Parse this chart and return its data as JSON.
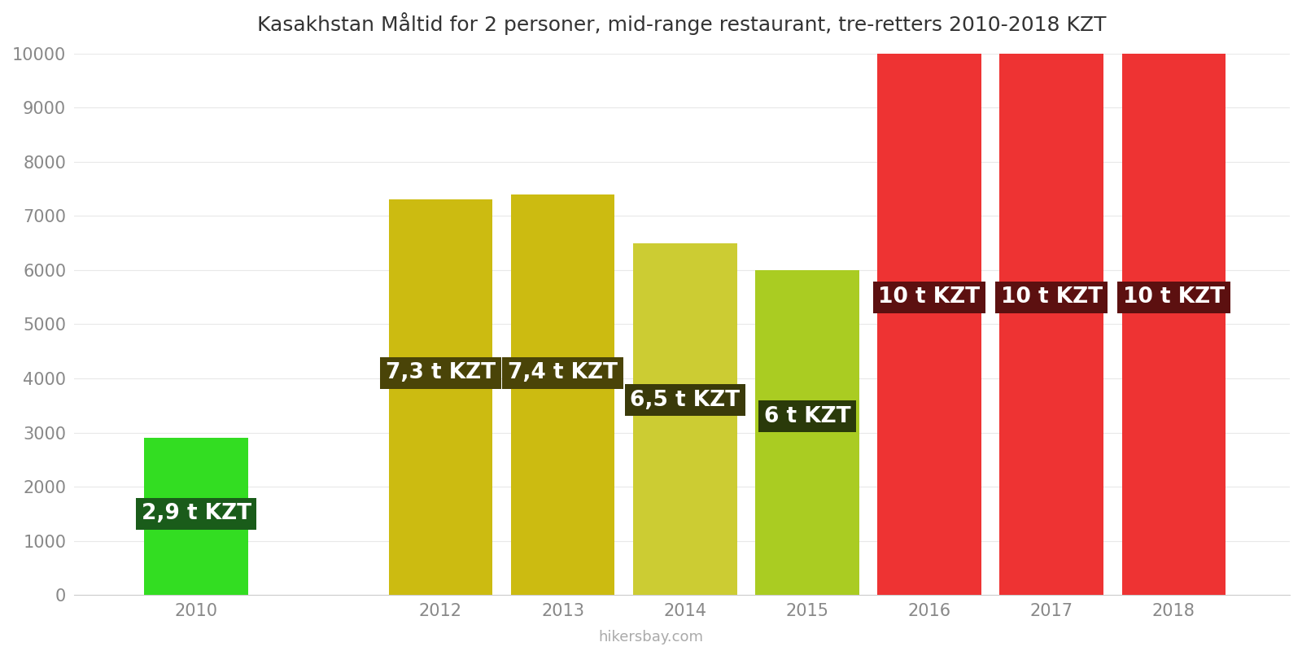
{
  "title": "Kasakhstan Måltid for 2 personer, mid-range restaurant, tre-retters 2010-2018 KZT",
  "years": [
    2010,
    2012,
    2013,
    2014,
    2015,
    2016,
    2017,
    2018
  ],
  "values": [
    2900,
    7300,
    7400,
    6500,
    6000,
    10000,
    10000,
    10000
  ],
  "labels": [
    "2,9 t KZT",
    "7,3 t KZT",
    "7,4 t KZT",
    "6,5 t KZT",
    "6 t KZT",
    "10 t KZT",
    "10 t KZT",
    "10 t KZT"
  ],
  "bar_colors": [
    "#33dd22",
    "#ccbb11",
    "#ccbb11",
    "#cccc33",
    "#aacc22",
    "#ee3333",
    "#ee3333",
    "#ee3333"
  ],
  "label_bg_colors": [
    "#1a5c1a",
    "#4a4408",
    "#4a4408",
    "#3a3a0a",
    "#2a3a0a",
    "#5c1010",
    "#5c1010",
    "#5c1010"
  ],
  "label_y_values": [
    1500,
    4100,
    4100,
    3600,
    3300,
    5500,
    5500,
    5500
  ],
  "ylim": [
    0,
    10000
  ],
  "yticks": [
    0,
    1000,
    2000,
    3000,
    4000,
    5000,
    6000,
    7000,
    8000,
    9000,
    10000
  ],
  "title_fontsize": 18,
  "label_fontsize": 19,
  "tick_fontsize": 15,
  "watermark": "hikersbay.com",
  "background_color": "#ffffff",
  "bar_width": 0.85,
  "xlim_left": 2009.0,
  "xlim_right": 2018.95
}
